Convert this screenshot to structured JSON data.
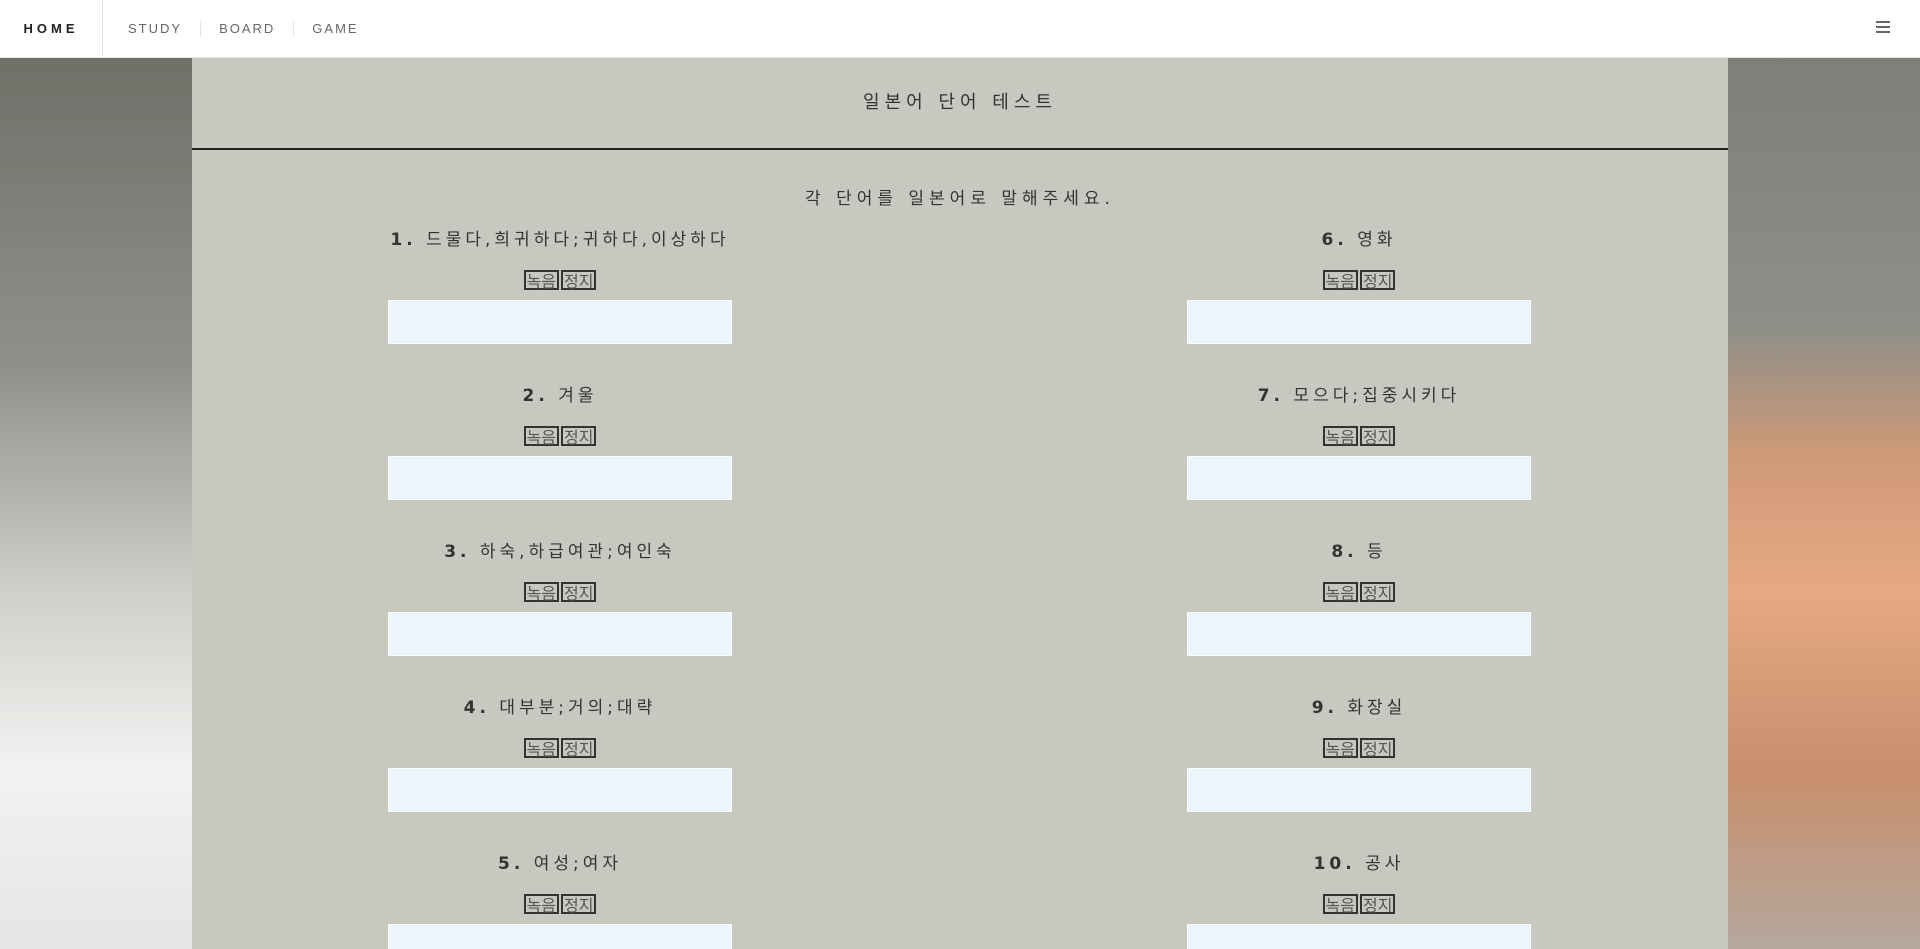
{
  "nav": {
    "brand": "HOME",
    "links": [
      "STUDY",
      "BOARD",
      "GAME"
    ]
  },
  "page": {
    "title": "일본어 단어 테스트",
    "instruction": "각 단어를 일본어로 말해주세요."
  },
  "buttons": {
    "record": "녹음",
    "stop": "정지"
  },
  "questions": [
    {
      "num": "1.",
      "word": "드물다,희귀하다;귀하다,이상하다",
      "answer": ""
    },
    {
      "num": "2.",
      "word": "겨울",
      "answer": ""
    },
    {
      "num": "3.",
      "word": "하숙,하급여관;여인숙",
      "answer": ""
    },
    {
      "num": "4.",
      "word": "대부분;거의;대략",
      "answer": ""
    },
    {
      "num": "5.",
      "word": "여성;여자",
      "answer": ""
    },
    {
      "num": "6.",
      "word": "영화",
      "answer": ""
    },
    {
      "num": "7.",
      "word": "모으다;집중시키다",
      "answer": ""
    },
    {
      "num": "8.",
      "word": "등",
      "answer": ""
    },
    {
      "num": "9.",
      "word": "화장실",
      "answer": ""
    },
    {
      "num": "10.",
      "word": "공사",
      "answer": ""
    }
  ]
}
